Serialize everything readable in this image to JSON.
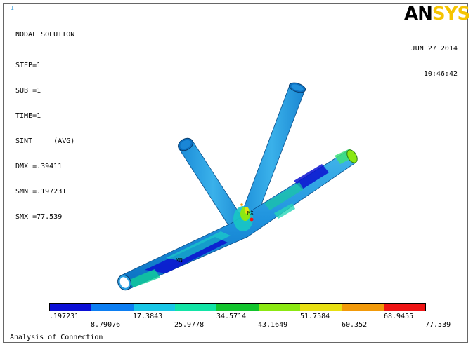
{
  "header": {
    "window_number": "1",
    "title": "NODAL SOLUTION",
    "info_lines": [
      "STEP=1",
      "SUB =1",
      "TIME=1",
      "SINT     (AVG)",
      "DMX =.39411",
      "SMN =.197231",
      "SMX =77.539"
    ],
    "logo_an": "AN",
    "logo_sys": "SYS",
    "date": "JUN 27 2014",
    "time": "10:46:42"
  },
  "model": {
    "min_marker": "MN",
    "max_marker": "MX"
  },
  "legend": {
    "colors": [
      "#0b0fd6",
      "#0c7ef2",
      "#19c6e6",
      "#12e4a6",
      "#12c42d",
      "#8be812",
      "#e8e012",
      "#f29a0a",
      "#ef1414"
    ],
    "top_labels": [
      ".197231",
      "17.3843",
      "34.5714",
      "51.7584",
      "68.9455"
    ],
    "bottom_labels": [
      "8.79076",
      "25.9778",
      "43.1649",
      "60.352",
      "77.539"
    ]
  },
  "footer": {
    "caption": "Analysis of Connection"
  }
}
